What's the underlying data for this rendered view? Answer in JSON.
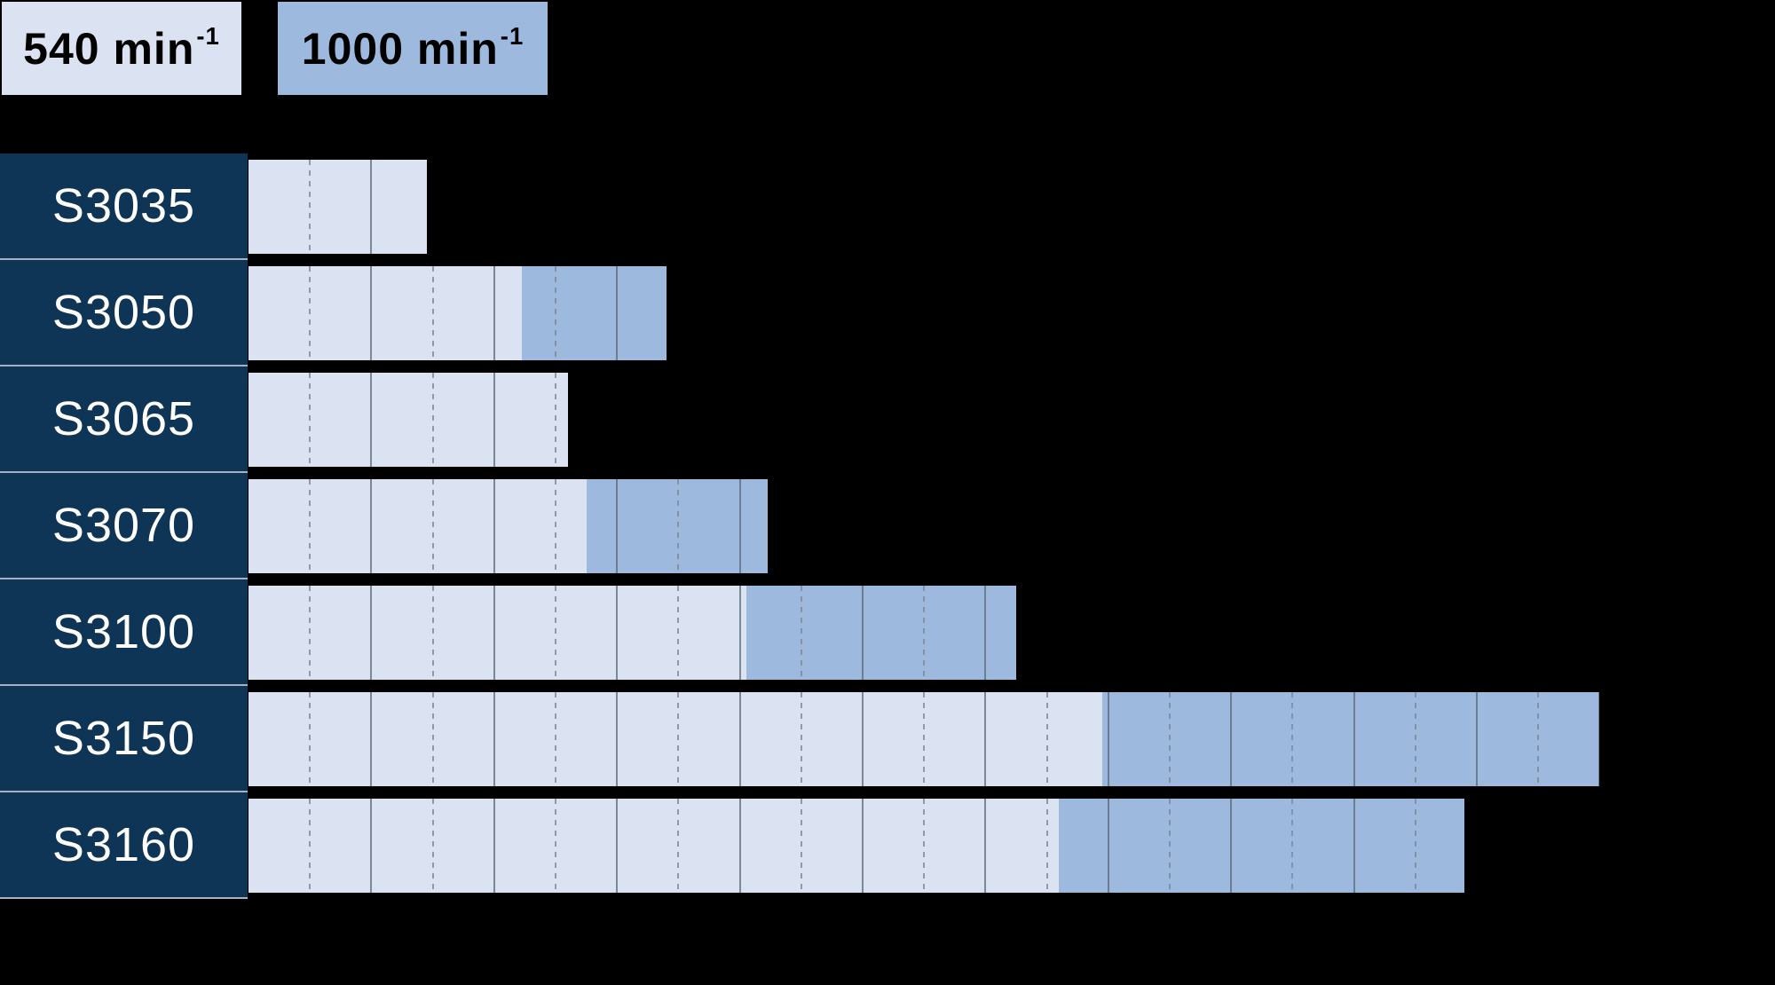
{
  "legend": {
    "items": [
      {
        "text": "540 min",
        "sup": "-1",
        "swatch_color": "#dbe3f2"
      },
      {
        "text": "1000 min",
        "sup": "-1",
        "swatch_color": "#9db9de"
      }
    ]
  },
  "chart_data": {
    "type": "bar",
    "orientation": "horizontal",
    "title": "",
    "categories": [
      "S3035",
      "S3050",
      "S3065",
      "S3070",
      "S3100",
      "S3150",
      "S3160"
    ],
    "series": [
      {
        "name": "540 min-1",
        "color": "#dbe3f2",
        "values": [
          29,
          44.5,
          52,
          55,
          81,
          139,
          132
        ]
      },
      {
        "name": "1000 min-1",
        "color": "#9db9de",
        "values": [
          null,
          68,
          null,
          84.5,
          125,
          220,
          198
        ]
      }
    ],
    "value_axis": {
      "labels_visible": false,
      "range_start": 0,
      "minor_gridline_step": 10,
      "major_gridline_step": 20,
      "gridline_style": "minor dashed, major solid, clipped inside bars"
    },
    "notes": "Axis units estimated from gridlines (1 minor division = 10 units). The 1000 min-1 segment extends from the 540 min-1 value up to the 1000 min-1 value; rows S3035 and S3065 have a 540 min-1 bar only."
  },
  "colors": {
    "background": "#000000",
    "label_bg": "#0e3456",
    "label_text": "#ffffff",
    "bar_540": "#dbe3f2",
    "bar_1000": "#9db9de",
    "separator": "#a9b2c3",
    "gridline_solid": "#5c6878",
    "gridline_dashed": "#7d8798"
  }
}
